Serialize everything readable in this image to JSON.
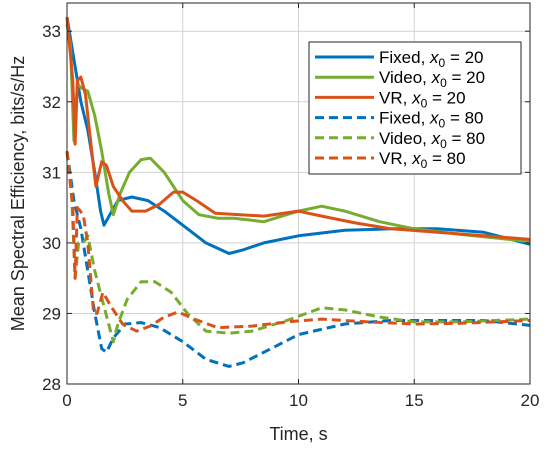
{
  "chart_data": {
    "type": "line",
    "xlabel": "Time, s",
    "ylabel": "Mean Spectral Efficiency, bits/s/Hz",
    "xlim": [
      0,
      20
    ],
    "ylim": [
      28,
      33.4
    ],
    "xticks": [
      "0",
      "5",
      "10",
      "15",
      "20"
    ],
    "yticks": [
      "28",
      "29",
      "30",
      "31",
      "32",
      "33"
    ],
    "grid": true,
    "legend_position": "top-right",
    "series": [
      {
        "name": "Fixed, x0 = 20",
        "legend_prefix": "Fixed, ",
        "legend_var": "x",
        "legend_sub": "0",
        "legend_suffix": " = 20",
        "color": "#0072BD",
        "dash": "solid",
        "points": [
          [
            0,
            33.2
          ],
          [
            0.3,
            32.6
          ],
          [
            0.6,
            32.0
          ],
          [
            0.9,
            31.6
          ],
          [
            1.2,
            31.0
          ],
          [
            1.45,
            30.45
          ],
          [
            1.6,
            30.25
          ],
          [
            1.85,
            30.4
          ],
          [
            2.2,
            30.6
          ],
          [
            2.8,
            30.65
          ],
          [
            3.5,
            30.6
          ],
          [
            4.2,
            30.45
          ],
          [
            5.0,
            30.25
          ],
          [
            6.0,
            30.0
          ],
          [
            7.0,
            29.85
          ],
          [
            7.6,
            29.9
          ],
          [
            8.5,
            30.0
          ],
          [
            10,
            30.1
          ],
          [
            12,
            30.18
          ],
          [
            14,
            30.2
          ],
          [
            16,
            30.2
          ],
          [
            18,
            30.15
          ],
          [
            20,
            29.98
          ]
        ]
      },
      {
        "name": "Video, x0 = 20",
        "legend_prefix": "Video, ",
        "legend_var": "x",
        "legend_sub": "0",
        "legend_suffix": " = 20",
        "color": "#77AC30",
        "dash": "solid",
        "points": [
          [
            0,
            33.1
          ],
          [
            0.15,
            32.8
          ],
          [
            0.3,
            31.45
          ],
          [
            0.45,
            32.25
          ],
          [
            0.6,
            32.2
          ],
          [
            0.9,
            32.15
          ],
          [
            1.2,
            31.8
          ],
          [
            1.5,
            31.3
          ],
          [
            1.8,
            30.7
          ],
          [
            2.0,
            30.4
          ],
          [
            2.3,
            30.7
          ],
          [
            2.7,
            31.0
          ],
          [
            3.2,
            31.18
          ],
          [
            3.6,
            31.2
          ],
          [
            4.2,
            31.0
          ],
          [
            5.0,
            30.6
          ],
          [
            5.7,
            30.4
          ],
          [
            6.5,
            30.35
          ],
          [
            7.2,
            30.35
          ],
          [
            8.5,
            30.3
          ],
          [
            10,
            30.45
          ],
          [
            11,
            30.52
          ],
          [
            12,
            30.45
          ],
          [
            13.5,
            30.3
          ],
          [
            15,
            30.2
          ],
          [
            17,
            30.12
          ],
          [
            20,
            30.02
          ]
        ]
      },
      {
        "name": "VR, x0 = 20",
        "legend_prefix": "VR, ",
        "legend_var": "x",
        "legend_sub": "0",
        "legend_suffix": " = 20",
        "color": "#D95319",
        "dash": "solid",
        "points": [
          [
            0,
            33.2
          ],
          [
            0.25,
            32.3
          ],
          [
            0.35,
            31.4
          ],
          [
            0.45,
            32.3
          ],
          [
            0.6,
            32.35
          ],
          [
            0.8,
            32.1
          ],
          [
            1.1,
            31.2
          ],
          [
            1.25,
            30.8
          ],
          [
            1.5,
            31.15
          ],
          [
            1.7,
            31.1
          ],
          [
            2.0,
            30.8
          ],
          [
            2.4,
            30.6
          ],
          [
            2.8,
            30.45
          ],
          [
            3.4,
            30.45
          ],
          [
            4.0,
            30.55
          ],
          [
            4.6,
            30.72
          ],
          [
            5.0,
            30.72
          ],
          [
            5.6,
            30.6
          ],
          [
            6.4,
            30.42
          ],
          [
            7.5,
            30.4
          ],
          [
            8.5,
            30.38
          ],
          [
            10,
            30.45
          ],
          [
            11,
            30.38
          ],
          [
            12.5,
            30.28
          ],
          [
            14,
            30.2
          ],
          [
            16,
            30.15
          ],
          [
            18,
            30.1
          ],
          [
            20,
            30.05
          ]
        ]
      },
      {
        "name": "Fixed, x0 = 80",
        "legend_prefix": "Fixed, ",
        "legend_var": "x",
        "legend_sub": "0",
        "legend_suffix": " = 80",
        "color": "#0072BD",
        "dash": "dashed",
        "points": [
          [
            0,
            31.3
          ],
          [
            0.3,
            30.6
          ],
          [
            0.6,
            30.2
          ],
          [
            0.9,
            29.6
          ],
          [
            1.2,
            29.0
          ],
          [
            1.5,
            28.5
          ],
          [
            1.7,
            28.45
          ],
          [
            2.0,
            28.65
          ],
          [
            2.5,
            28.85
          ],
          [
            3.2,
            28.87
          ],
          [
            4.0,
            28.8
          ],
          [
            5.0,
            28.6
          ],
          [
            6.0,
            28.35
          ],
          [
            7.0,
            28.25
          ],
          [
            7.6,
            28.3
          ],
          [
            8.5,
            28.45
          ],
          [
            10,
            28.7
          ],
          [
            12,
            28.85
          ],
          [
            14,
            28.9
          ],
          [
            16,
            28.9
          ],
          [
            18,
            28.9
          ],
          [
            20,
            28.83
          ]
        ]
      },
      {
        "name": "Video, x0 = 80",
        "legend_prefix": "Video, ",
        "legend_var": "x",
        "legend_sub": "0",
        "legend_suffix": " = 80",
        "color": "#77AC30",
        "dash": "dashed",
        "points": [
          [
            0,
            31.3
          ],
          [
            0.2,
            30.7
          ],
          [
            0.35,
            29.5
          ],
          [
            0.5,
            30.0
          ],
          [
            0.7,
            30.0
          ],
          [
            0.9,
            30.1
          ],
          [
            1.2,
            29.6
          ],
          [
            1.6,
            29.1
          ],
          [
            2.0,
            28.6
          ],
          [
            2.2,
            28.85
          ],
          [
            2.6,
            29.2
          ],
          [
            3.2,
            29.45
          ],
          [
            3.8,
            29.45
          ],
          [
            4.5,
            29.3
          ],
          [
            5.2,
            29.0
          ],
          [
            6.0,
            28.75
          ],
          [
            7.0,
            28.72
          ],
          [
            8.0,
            28.75
          ],
          [
            9.5,
            28.9
          ],
          [
            11,
            29.08
          ],
          [
            12,
            29.05
          ],
          [
            13.5,
            28.95
          ],
          [
            15,
            28.88
          ],
          [
            17,
            28.88
          ],
          [
            20,
            28.92
          ]
        ]
      },
      {
        "name": "VR, x0 = 80",
        "legend_prefix": "VR, ",
        "legend_var": "x",
        "legend_sub": "0",
        "legend_suffix": " = 80",
        "color": "#D95319",
        "dash": "dashed",
        "points": [
          [
            0,
            31.3
          ],
          [
            0.25,
            30.5
          ],
          [
            0.35,
            29.5
          ],
          [
            0.45,
            30.5
          ],
          [
            0.7,
            30.4
          ],
          [
            0.9,
            30.0
          ],
          [
            1.15,
            29.0
          ],
          [
            1.3,
            29.0
          ],
          [
            1.55,
            29.3
          ],
          [
            1.9,
            29.1
          ],
          [
            2.4,
            28.85
          ],
          [
            3.0,
            28.75
          ],
          [
            3.6,
            28.82
          ],
          [
            4.2,
            28.95
          ],
          [
            4.8,
            29.02
          ],
          [
            5.5,
            28.92
          ],
          [
            6.5,
            28.8
          ],
          [
            8.0,
            28.82
          ],
          [
            9.5,
            28.88
          ],
          [
            11,
            28.92
          ],
          [
            13,
            28.88
          ],
          [
            15,
            28.85
          ],
          [
            17,
            28.86
          ],
          [
            20,
            28.9
          ]
        ]
      }
    ]
  }
}
